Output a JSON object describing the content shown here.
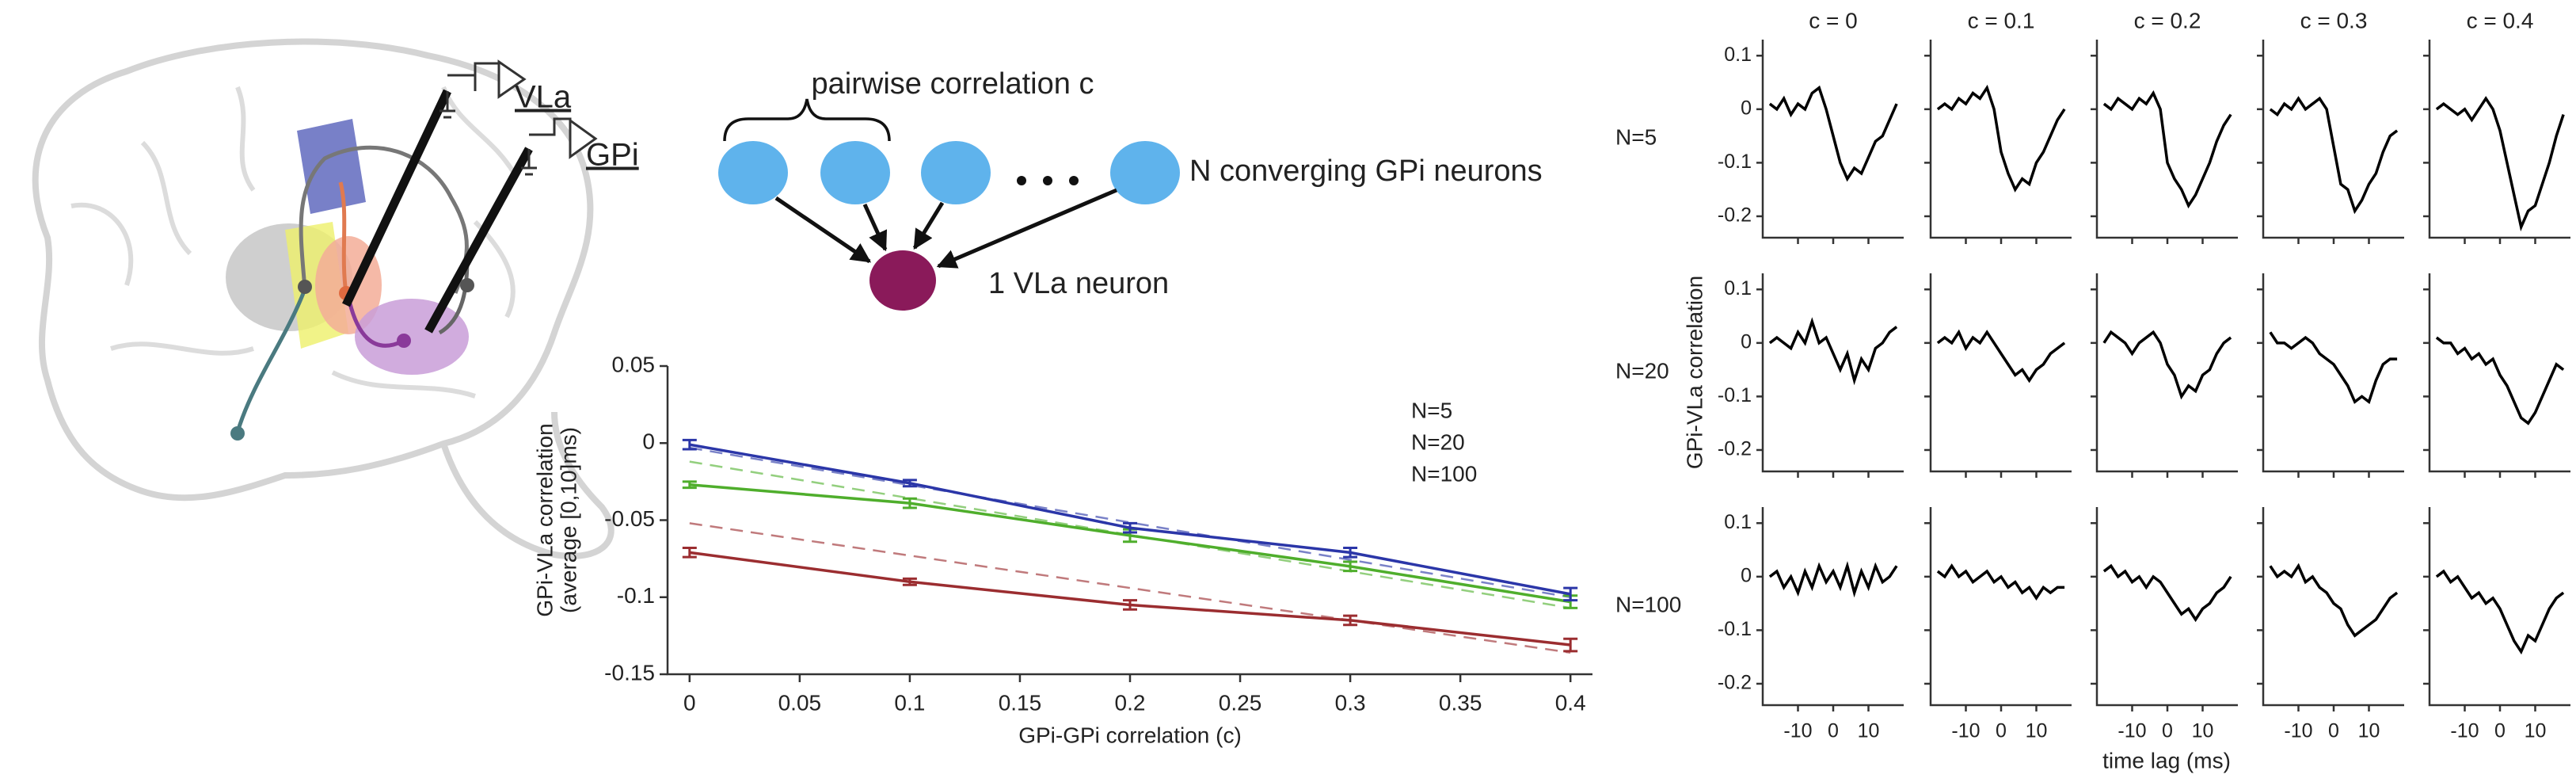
{
  "diagram": {
    "brain": {
      "labels": [
        "VLa",
        "GPi"
      ]
    },
    "network": {
      "correlation_label": "pairwise correlation c",
      "gpi_label": "N converging GPi neurons",
      "vla_label": "1 VLa neuron"
    }
  },
  "chart_data": [
    {
      "type": "line",
      "xlabel": "GPi-GPi correlation (c)",
      "ylabel": [
        "GPi-VLa correlation",
        "(average [0,10]ms)"
      ],
      "x": [
        0,
        0.1,
        0.2,
        0.3,
        0.4
      ],
      "series": [
        {
          "name": "N=5",
          "color": "#9b2d30",
          "values": [
            -0.071,
            -0.09,
            -0.105,
            -0.115,
            -0.131
          ],
          "errors": [
            0.003,
            0.002,
            0.003,
            0.003,
            0.004
          ]
        },
        {
          "name": "N=20",
          "color": "#4fae2c",
          "values": [
            -0.027,
            -0.039,
            -0.06,
            -0.08,
            -0.103
          ],
          "errors": [
            0.002,
            0.003,
            0.004,
            0.003,
            0.004
          ]
        },
        {
          "name": "N=100",
          "color": "#2b36a8",
          "values": [
            -0.001,
            -0.026,
            -0.055,
            -0.071,
            -0.098
          ],
          "errors": [
            0.003,
            0.002,
            0.003,
            0.003,
            0.004
          ]
        }
      ],
      "fit_lines": [
        {
          "color": "#c07a7c",
          "x": [
            0,
            0.4
          ],
          "values": [
            -0.052,
            -0.136
          ]
        },
        {
          "color": "#93cf7e",
          "x": [
            0,
            0.4
          ],
          "values": [
            -0.012,
            -0.107
          ]
        },
        {
          "color": "#7a82c8",
          "x": [
            0,
            0.4
          ],
          "values": [
            -0.003,
            -0.1
          ]
        }
      ],
      "xlim": [
        -0.01,
        0.41
      ],
      "xticks": [
        0,
        0.05,
        0.1,
        0.15,
        0.2,
        0.25,
        0.3,
        0.35,
        0.4
      ],
      "ylim": [
        -0.15,
        0.05
      ],
      "yticks": [
        -0.15,
        -0.1,
        -0.05,
        0,
        0.05
      ]
    },
    {
      "type": "line",
      "columns": [
        "c = 0",
        "c = 0.1",
        "c = 0.2",
        "c = 0.3",
        "c = 0.4"
      ],
      "rows": [
        "N=5",
        "N=20",
        "N=100"
      ],
      "ylabel": "GPi-VLa correlation",
      "xlabel": "time lag (ms)",
      "color": "#000000",
      "x": [
        -18,
        -16,
        -14,
        -12,
        -10,
        -8,
        -6,
        -4,
        -2,
        0,
        2,
        4,
        6,
        8,
        10,
        12,
        14,
        16,
        18
      ],
      "panels": [
        [
          [
            0.01,
            0.0,
            0.02,
            -0.01,
            0.01,
            0.0,
            0.03,
            0.04,
            0.0,
            -0.05,
            -0.1,
            -0.13,
            -0.11,
            -0.12,
            -0.09,
            -0.06,
            -0.05,
            -0.02,
            0.01
          ],
          [
            0.0,
            0.01,
            0.0,
            0.02,
            0.01,
            0.03,
            0.02,
            0.04,
            0.0,
            -0.08,
            -0.12,
            -0.15,
            -0.13,
            -0.14,
            -0.1,
            -0.08,
            -0.05,
            -0.02,
            0.0
          ],
          [
            0.01,
            0.0,
            0.02,
            0.01,
            0.0,
            0.02,
            0.01,
            0.03,
            0.0,
            -0.1,
            -0.13,
            -0.15,
            -0.18,
            -0.16,
            -0.13,
            -0.1,
            -0.06,
            -0.03,
            -0.01
          ],
          [
            0.0,
            -0.01,
            0.01,
            0.0,
            0.02,
            0.0,
            0.01,
            0.02,
            0.0,
            -0.07,
            -0.14,
            -0.15,
            -0.19,
            -0.17,
            -0.14,
            -0.12,
            -0.08,
            -0.05,
            -0.04
          ],
          [
            0.0,
            0.01,
            0.0,
            -0.01,
            0.0,
            -0.02,
            0.0,
            0.02,
            0.0,
            -0.04,
            -0.1,
            -0.16,
            -0.22,
            -0.19,
            -0.18,
            -0.14,
            -0.1,
            -0.05,
            -0.01
          ]
        ],
        [
          [
            0.0,
            0.01,
            0.0,
            -0.01,
            0.02,
            0.0,
            0.04,
            0.0,
            0.01,
            -0.02,
            -0.05,
            -0.02,
            -0.07,
            -0.03,
            -0.05,
            -0.01,
            0.0,
            0.02,
            0.03
          ],
          [
            0.0,
            0.01,
            0.0,
            0.02,
            -0.01,
            0.01,
            0.0,
            0.02,
            0.0,
            -0.02,
            -0.04,
            -0.06,
            -0.05,
            -0.07,
            -0.05,
            -0.04,
            -0.02,
            -0.01,
            0.0
          ],
          [
            0.0,
            0.02,
            0.01,
            0.0,
            -0.02,
            0.0,
            0.01,
            0.02,
            0.0,
            -0.04,
            -0.06,
            -0.1,
            -0.08,
            -0.09,
            -0.06,
            -0.05,
            -0.02,
            0.0,
            0.01
          ],
          [
            0.02,
            0.0,
            0.0,
            -0.01,
            0.0,
            0.01,
            0.0,
            -0.02,
            -0.03,
            -0.04,
            -0.06,
            -0.08,
            -0.11,
            -0.1,
            -0.11,
            -0.07,
            -0.04,
            -0.03,
            -0.03
          ],
          [
            0.01,
            0.0,
            0.0,
            -0.02,
            -0.01,
            -0.03,
            -0.02,
            -0.04,
            -0.03,
            -0.06,
            -0.08,
            -0.11,
            -0.14,
            -0.15,
            -0.13,
            -0.1,
            -0.07,
            -0.04,
            -0.05
          ]
        ],
        [
          [
            0.0,
            0.01,
            -0.02,
            0.0,
            -0.03,
            0.01,
            -0.02,
            0.02,
            -0.01,
            0.01,
            -0.02,
            0.02,
            -0.03,
            0.01,
            -0.02,
            0.02,
            -0.01,
            0.0,
            0.02
          ],
          [
            0.01,
            0.0,
            0.02,
            0.0,
            0.01,
            -0.01,
            0.0,
            0.01,
            -0.01,
            0.0,
            -0.02,
            -0.01,
            -0.03,
            -0.02,
            -0.04,
            -0.02,
            -0.03,
            -0.02,
            -0.02
          ],
          [
            0.01,
            0.02,
            0.0,
            0.01,
            -0.01,
            0.0,
            -0.02,
            0.0,
            -0.01,
            -0.03,
            -0.05,
            -0.07,
            -0.06,
            -0.08,
            -0.06,
            -0.05,
            -0.03,
            -0.02,
            0.0
          ],
          [
            0.02,
            0.0,
            0.01,
            0.0,
            0.02,
            -0.01,
            0.0,
            -0.02,
            -0.03,
            -0.05,
            -0.06,
            -0.09,
            -0.11,
            -0.1,
            -0.09,
            -0.08,
            -0.06,
            -0.04,
            -0.03
          ],
          [
            0.0,
            0.01,
            -0.01,
            0.0,
            -0.02,
            -0.04,
            -0.03,
            -0.05,
            -0.04,
            -0.06,
            -0.09,
            -0.12,
            -0.14,
            -0.11,
            -0.12,
            -0.09,
            -0.06,
            -0.04,
            -0.03
          ]
        ]
      ],
      "xlim": [
        -20,
        20
      ],
      "xticks": [
        -10,
        0,
        10
      ],
      "ylim": [
        -0.24,
        0.13
      ],
      "yticks": [
        -0.2,
        -0.1,
        0,
        0.1
      ]
    }
  ]
}
